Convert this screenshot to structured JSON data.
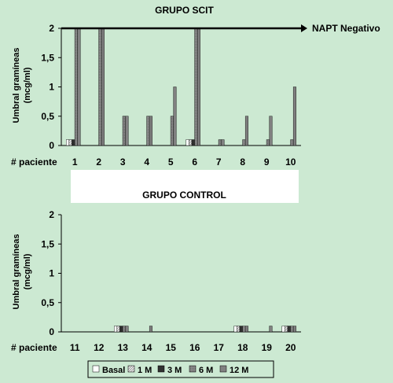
{
  "chart_data": [
    {
      "type": "bar",
      "title": "GRUPO SCIT",
      "ylabel": "Umbral gramíneas (mcg/ml)",
      "ylabel_lines": [
        "Umbral gramíneas",
        "(mcg/ml)"
      ],
      "xlabel": "# paciente",
      "ylim": [
        0,
        2
      ],
      "yticks": [
        "0",
        "0,5",
        "1",
        "1,5",
        "2"
      ],
      "categories": [
        "1",
        "2",
        "3",
        "4",
        "5",
        "6",
        "7",
        "8",
        "9",
        "10"
      ],
      "annotation": "NAPT Negativo",
      "series": [
        {
          "name": "Basal",
          "values": [
            0.1,
            0,
            0,
            0,
            0,
            0.1,
            0,
            0,
            0,
            0
          ]
        },
        {
          "name": "1 M",
          "values": [
            0.1,
            0,
            0,
            0,
            0,
            0.1,
            0,
            0,
            0,
            0
          ]
        },
        {
          "name": "3 M",
          "values": [
            0.1,
            0,
            0,
            0,
            0,
            0.1,
            0,
            0,
            0,
            0
          ]
        },
        {
          "name": "6 M",
          "values": [
            2,
            2,
            0.5,
            0.5,
            0.5,
            2,
            0.1,
            0.1,
            0.1,
            0.1
          ]
        },
        {
          "name": "12 M",
          "values": [
            2,
            2,
            0.5,
            0.5,
            1,
            2,
            0.1,
            0.5,
            0.5,
            1
          ]
        }
      ]
    },
    {
      "type": "bar",
      "title": "GRUPO CONTROL",
      "ylabel": "Umbral gramíneas (mcg/ml)",
      "ylabel_lines": [
        "Umbral gramíneas",
        "(mcg/ml)"
      ],
      "xlabel": "# paciente",
      "ylim": [
        0,
        2
      ],
      "yticks": [
        "0",
        "0,5",
        "1",
        "1,5",
        "2"
      ],
      "categories": [
        "11",
        "12",
        "13",
        "14",
        "15",
        "16",
        "17",
        "18",
        "19",
        "20"
      ],
      "series": [
        {
          "name": "Basal",
          "values": [
            0,
            0,
            0.1,
            0,
            0,
            0,
            0,
            0.1,
            0,
            0.1
          ]
        },
        {
          "name": "1 M",
          "values": [
            0,
            0,
            0.1,
            0,
            0,
            0,
            0,
            0.1,
            0,
            0.1
          ]
        },
        {
          "name": "3 M",
          "values": [
            0,
            0,
            0.1,
            0,
            0,
            0,
            0,
            0.1,
            0,
            0.1
          ]
        },
        {
          "name": "6 M",
          "values": [
            0,
            0,
            0.1,
            0,
            0,
            0,
            0,
            0.1,
            0,
            0.1
          ]
        },
        {
          "name": "12 M",
          "values": [
            0,
            0,
            0.1,
            0.1,
            0,
            0,
            0,
            0.1,
            0.1,
            0.1
          ]
        }
      ]
    }
  ],
  "legend": {
    "items": [
      "Basal",
      "1 M",
      "3 M",
      "6 M",
      "12 M"
    ],
    "colors": [
      "#ffffff",
      "#d8d8d8",
      "#303030",
      "#808080",
      "#909090"
    ]
  },
  "colors": {
    "background": "#cce9d2",
    "separator": "#ffffff",
    "axis": "#000000"
  }
}
